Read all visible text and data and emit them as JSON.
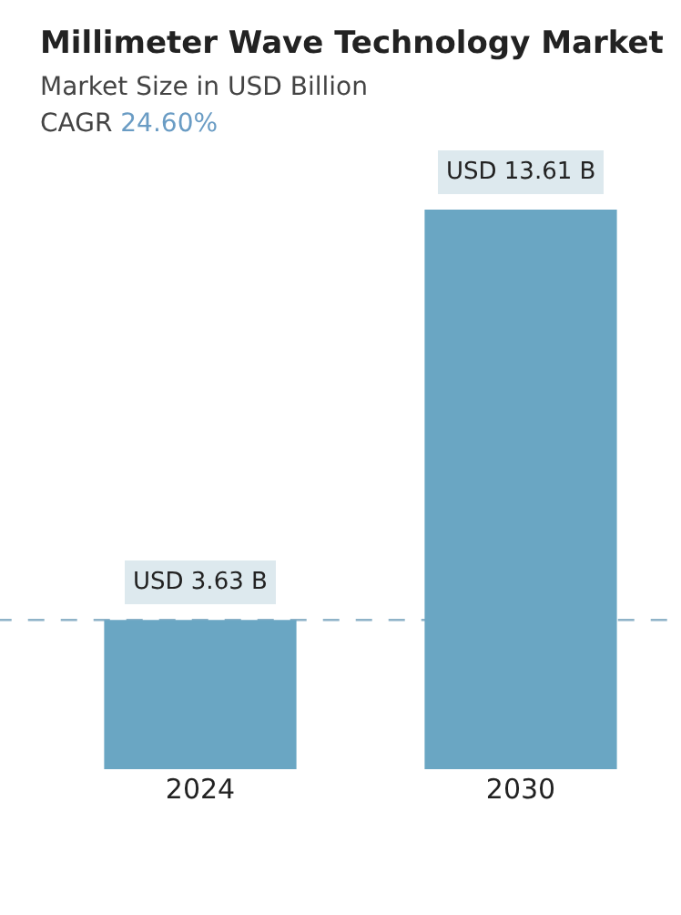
{
  "chart_data": {
    "type": "bar",
    "title": "Millimeter Wave Technology Market",
    "subtitle": "Market Size in USD Billion",
    "annotations": [
      "CAGR 24.60%"
    ],
    "categories": [
      "2024",
      "2030"
    ],
    "values": [
      3.63,
      13.61
    ],
    "value_labels": [
      "USD 3.63 B",
      "USD 13.61 B"
    ],
    "color": "#6aa6c3",
    "ref_lines": [
      {
        "axis": "y",
        "value": 3.63,
        "color": "#8fb3c8",
        "line_style": "dashed"
      }
    ],
    "tick_labels": "x",
    "grid": false,
    "legend": false
  }
}
